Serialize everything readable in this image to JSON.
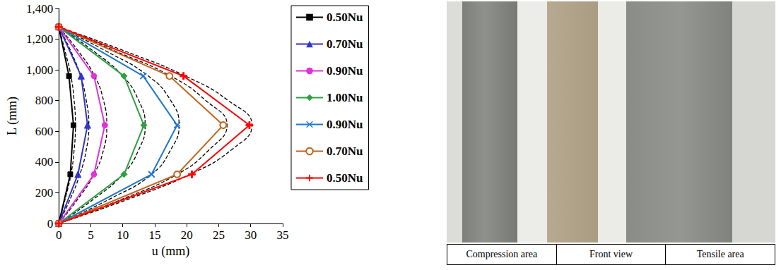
{
  "chart_data": {
    "type": "line",
    "xlabel": "u (mm)",
    "ylabel": "L (mm)",
    "xlim": [
      0,
      35
    ],
    "xticks": [
      0,
      5,
      10,
      15,
      20,
      25,
      30,
      35
    ],
    "ylim": [
      0,
      1400
    ],
    "yticks": [
      0,
      200,
      400,
      600,
      800,
      1000,
      1200,
      1400
    ],
    "grid": false,
    "legend": "right",
    "series": [
      {
        "color": "#000000",
        "marker": "none",
        "line_style": "dashed",
        "x": [
          0,
          1.0,
          1.9,
          2.4,
          2.6,
          2.4,
          1.9,
          1.0,
          0
        ],
        "y": [
          0,
          160,
          320,
          480,
          640,
          800,
          960,
          1120,
          1280
        ]
      },
      {
        "color": "#000000",
        "marker": "none",
        "line_style": "dashed",
        "x": [
          0,
          1.8,
          3.3,
          4.3,
          4.7,
          4.3,
          3.4,
          1.9,
          0
        ],
        "y": [
          0,
          160,
          320,
          480,
          640,
          800,
          960,
          1120,
          1280
        ]
      },
      {
        "color": "#000000",
        "marker": "none",
        "line_style": "dashed",
        "x": [
          0,
          3.0,
          5.5,
          7.0,
          7.5,
          7.0,
          5.6,
          3.1,
          0
        ],
        "y": [
          0,
          160,
          320,
          480,
          640,
          800,
          960,
          1120,
          1280
        ]
      },
      {
        "color": "#000000",
        "marker": "none",
        "line_style": "dashed",
        "x": [
          0,
          5.5,
          10.0,
          12.5,
          13.5,
          12.5,
          10.0,
          5.5,
          0
        ],
        "y": [
          0,
          160,
          320,
          480,
          640,
          800,
          960,
          1120,
          1280
        ]
      },
      {
        "color": "#000000",
        "marker": "none",
        "line_style": "dashed",
        "x": [
          0,
          8.0,
          14.5,
          17.5,
          18.8,
          17.5,
          14.0,
          7.5,
          0
        ],
        "y": [
          0,
          160,
          320,
          480,
          640,
          800,
          960,
          1120,
          1280
        ]
      },
      {
        "color": "#000000",
        "marker": "none",
        "line_style": "dashed",
        "x": [
          0,
          10.0,
          18.5,
          23.5,
          26.3,
          23.0,
          17.5,
          9.0,
          0
        ],
        "y": [
          0,
          160,
          320,
          480,
          640,
          800,
          960,
          1120,
          1280
        ]
      },
      {
        "color": "#000000",
        "marker": "none",
        "line_style": "dashed",
        "x": [
          0,
          11.0,
          20.5,
          27.0,
          30.2,
          26.5,
          19.8,
          10.5,
          0
        ],
        "y": [
          0,
          160,
          320,
          480,
          640,
          800,
          960,
          1120,
          1280
        ]
      },
      {
        "name": "0.50Nu",
        "color": "#000000",
        "marker": "square",
        "line_style": "solid",
        "x": [
          0,
          1.8,
          2.3,
          1.6,
          0
        ],
        "y": [
          0,
          320,
          640,
          960,
          1280
        ]
      },
      {
        "name": "0.70Nu",
        "color": "#3333cc",
        "marker": "triangle",
        "line_style": "solid",
        "x": [
          0,
          3.0,
          4.5,
          3.5,
          0
        ],
        "y": [
          0,
          320,
          640,
          960,
          1280
        ]
      },
      {
        "name": "0.90Nu",
        "color": "#e033d6",
        "marker": "circle",
        "line_style": "solid",
        "x": [
          0,
          5.5,
          7.2,
          5.5,
          0
        ],
        "y": [
          0,
          320,
          640,
          960,
          1280
        ]
      },
      {
        "name": "1.00Nu",
        "color": "#2ea043",
        "marker": "diamond",
        "line_style": "solid",
        "x": [
          0,
          10.2,
          13.3,
          10.2,
          0
        ],
        "y": [
          0,
          320,
          640,
          960,
          1280
        ]
      },
      {
        "name": "0.90Nu",
        "color": "#1f78c8",
        "marker": "x",
        "line_style": "solid",
        "x": [
          0,
          14.5,
          18.5,
          13.2,
          0
        ],
        "y": [
          0,
          320,
          640,
          960,
          1280
        ]
      },
      {
        "name": "0.70Nu",
        "color": "#c0651e",
        "marker": "open_circle",
        "line_style": "solid",
        "x": [
          0,
          18.5,
          25.7,
          17.3,
          0
        ],
        "y": [
          0,
          320,
          640,
          960,
          1280
        ]
      },
      {
        "name": "0.50Nu",
        "color": "#ff0000",
        "marker": "plus",
        "line_style": "solid",
        "x": [
          0,
          20.8,
          29.8,
          19.5,
          0
        ],
        "y": [
          0,
          320,
          640,
          960,
          1280
        ]
      }
    ]
  },
  "photo": {
    "captions": [
      "Compression area",
      "Front view",
      "Tensile area"
    ]
  }
}
